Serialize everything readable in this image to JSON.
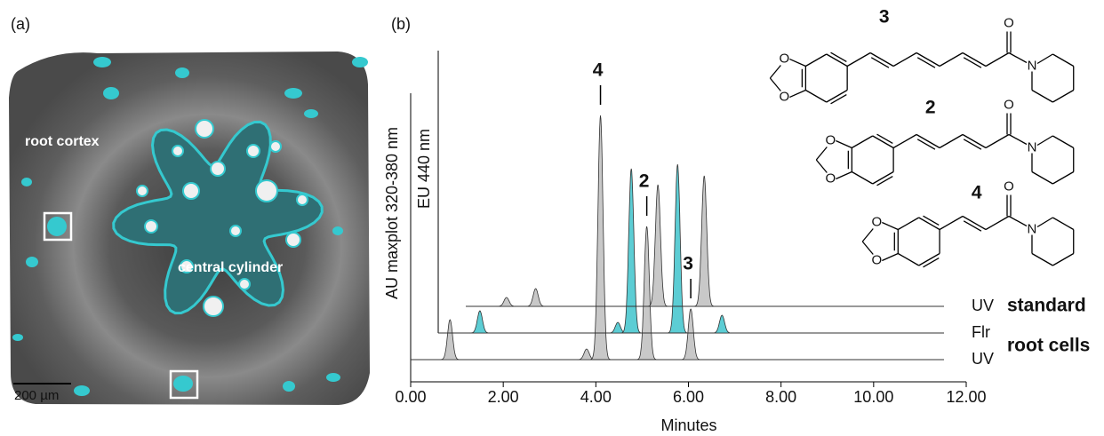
{
  "panel_a": {
    "label": "(a)",
    "regions": [
      "root cortex",
      "central cylinder"
    ],
    "scale_bar": "200 µm"
  },
  "chart_data": {
    "type": "chromatogram",
    "label": "(b)",
    "xlabel": "Minutes",
    "ylabel": "AU maxplot 320-380 nm",
    "y2label": "EU 440 nm",
    "xlim": [
      0,
      12
    ],
    "ylim": [
      0,
      300
    ],
    "xticks": [
      {
        "value": 0,
        "label": "0.00"
      },
      {
        "value": 2,
        "label": "2.00"
      },
      {
        "value": 4,
        "label": "4.00"
      },
      {
        "value": 6,
        "label": "6.00"
      },
      {
        "value": 8,
        "label": "8.00"
      },
      {
        "value": 10,
        "label": "10.00"
      },
      {
        "value": 12,
        "label": "12.00"
      }
    ],
    "trace_groups": [
      "standard",
      "root cells"
    ],
    "series": [
      {
        "name": "UV",
        "color": "#c8c8c8",
        "x": [
          0.85,
          3.8,
          4.1,
          5.1,
          6.05
        ],
        "values": [
          45,
          12,
          275,
          150,
          57
        ]
      },
      {
        "name": "Flr",
        "color": "#5ccdd4",
        "x": [
          0.9,
          3.88,
          4.17,
          5.17,
          6.13
        ],
        "values": [
          25,
          12,
          185,
          190,
          20
        ]
      },
      {
        "name": "UV",
        "color": "#c8c8c8",
        "x": [
          0.88,
          1.51,
          4.15,
          5.15
        ],
        "values": [
          10,
          20,
          137,
          147
        ]
      }
    ],
    "annotations": [
      {
        "text": "4",
        "x": 4.1
      },
      {
        "text": "2",
        "x": 5.1
      },
      {
        "text": "3",
        "x": 6.05
      }
    ]
  },
  "structures": [
    {
      "label": "3",
      "carbonyl": "O",
      "amine": "N",
      "dioxole": [
        "O",
        "O"
      ]
    },
    {
      "label": "2",
      "carbonyl": "O",
      "amine": "N",
      "dioxole": [
        "O",
        "O"
      ]
    },
    {
      "label": "4",
      "carbonyl": "O",
      "amine": "N",
      "dioxole": [
        "O",
        "O"
      ]
    }
  ]
}
